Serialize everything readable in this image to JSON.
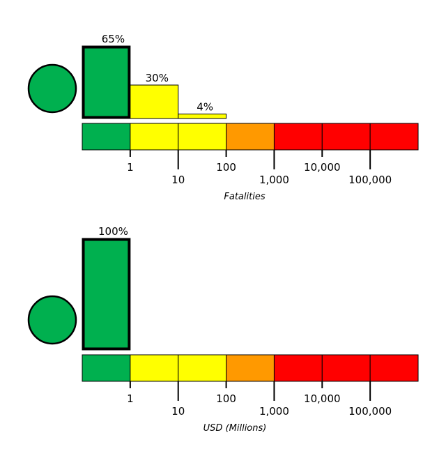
{
  "chart_data": [
    {
      "type": "bar",
      "xlabel": "Fatalities",
      "scale": "log",
      "tick_labels": [
        "1",
        "10",
        "100",
        "1,000",
        "10,000",
        "100,000"
      ],
      "bins": [
        "0-1",
        "1-10",
        "10-100",
        "100-1,000",
        "1,000-10,000",
        "10,000-100,000",
        "100,000+"
      ],
      "bin_colors": [
        "#00b04f",
        "#ffff00",
        "#ffff00",
        "#ff9900",
        "#ff0000",
        "#ff0000",
        "#ff0000"
      ],
      "values": [
        65,
        30,
        4,
        0,
        0,
        0,
        0
      ],
      "value_labels": [
        "65%",
        "30%",
        "4%",
        "",
        "",
        "",
        ""
      ],
      "highlight_bin": 0,
      "alert_color": "#00b04f"
    },
    {
      "type": "bar",
      "xlabel": "USD (Millions)",
      "scale": "log",
      "tick_labels": [
        "1",
        "10",
        "100",
        "1,000",
        "10,000",
        "100,000"
      ],
      "bins": [
        "0-1",
        "1-10",
        "10-100",
        "100-1,000",
        "1,000-10,000",
        "10,000-100,000",
        "100,000+"
      ],
      "bin_colors": [
        "#00b04f",
        "#ffff00",
        "#ffff00",
        "#ff9900",
        "#ff0000",
        "#ff0000",
        "#ff0000"
      ],
      "values": [
        100,
        0,
        0,
        0,
        0,
        0,
        0
      ],
      "value_labels": [
        "100%",
        "",
        "",
        "",
        "",
        "",
        ""
      ],
      "highlight_bin": 0,
      "alert_color": "#00b04f"
    }
  ]
}
